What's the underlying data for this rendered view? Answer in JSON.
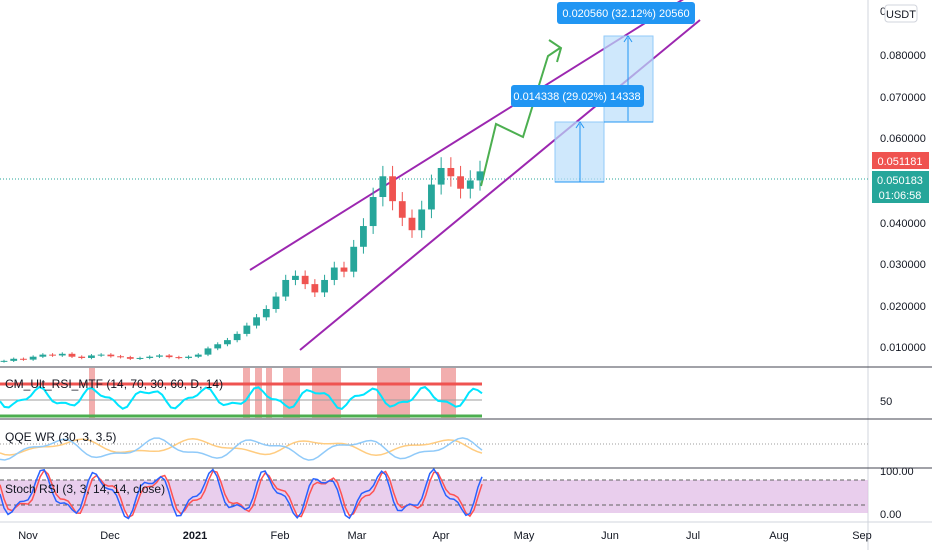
{
  "colors": {
    "up": "#26a69a",
    "down": "#ef5350",
    "channel": "#9c27b0",
    "arrow": "#4caf50",
    "measure_fill": "#bbdefb",
    "measure_edge": "#2196f3",
    "label_bg": "#2196f3",
    "price_label_red": "#ef5350",
    "price_label_green": "#26a69a",
    "rsi_band_red": "#ef9a9a",
    "rsi_line": "#00e5ff",
    "qqe_blue": "#90caf9",
    "qqe_orange": "#ffcc80",
    "stoch_fill": "#e1bee7",
    "stoch_k": "#2962ff",
    "stoch_d": "#ff5252"
  },
  "price_axis": {
    "currency": "USDT",
    "top_tick": "0",
    "ticks": [
      "0.080000",
      "0.070000",
      "0.060000",
      "0.040000",
      "0.030000",
      "0.020000",
      "0.010000"
    ],
    "last_price_red": "0.051181",
    "last_price_green": "0.050183",
    "countdown": "01:06:58"
  },
  "time_axis": {
    "labels": [
      "Nov",
      "Dec",
      "2021",
      "Feb",
      "Mar",
      "Apr",
      "May",
      "Jun",
      "Jul",
      "Aug",
      "Sep"
    ]
  },
  "measures": {
    "upper": "0.020560 (32.12%) 20560",
    "lower": "0.014338 (29.02%) 14338"
  },
  "indicators": {
    "rsi": {
      "title": "CM_Ult_RSI_MTF (14, 70, 30, 60, D, 14)",
      "axis_label": "50"
    },
    "qqe": {
      "title": "QQE WR (30, 3, 3.5)"
    },
    "stoch": {
      "title": "Stoch RSI (3, 3, 14, 14, close)",
      "axis_top": "100.00",
      "axis_bottom": "0.00"
    }
  },
  "chart_data": {
    "type": "candlestick",
    "series": [
      {
        "values": [
          0.0055,
          0.006,
          0.0058,
          0.0065,
          0.007,
          0.0068,
          0.0072,
          0.0065,
          0.0062,
          0.0068,
          0.007,
          0.0066,
          0.0064,
          0.006,
          0.0062,
          0.0065,
          0.0068,
          0.0064,
          0.0062,
          0.0065,
          0.007,
          0.0085,
          0.0095,
          0.0105,
          0.012,
          0.014,
          0.016,
          0.018,
          0.021,
          0.025,
          0.026,
          0.024,
          0.022,
          0.025,
          0.028,
          0.027,
          0.033,
          0.038,
          0.045,
          0.05,
          0.044,
          0.04,
          0.037,
          0.042,
          0.048,
          0.052,
          0.05,
          0.047,
          0.049,
          0.051181
        ]
      }
    ],
    "ylim": [
      0.0045,
      0.0925
    ]
  }
}
